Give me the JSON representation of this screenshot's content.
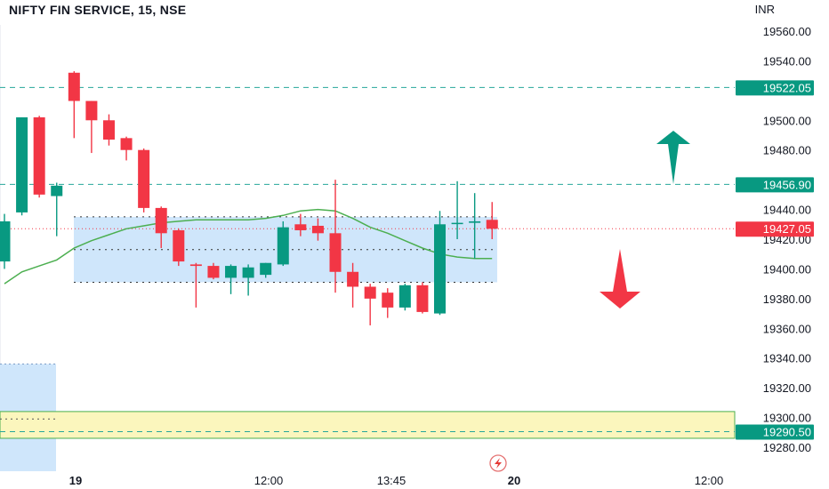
{
  "header": {
    "symbol": "NIFTY FIN SERVICE, 15, NSE",
    "currency": "INR"
  },
  "colors": {
    "up": "#089981",
    "down": "#f23645",
    "ma": "#4caf50",
    "blue_zone": "#cfe6fb",
    "yellow_zone": "#fbf6bd",
    "grid_text": "#131722",
    "dashed": "#26a69a"
  },
  "price_axis": {
    "ticks": [
      19560,
      19540,
      19520,
      19500,
      19480,
      19460,
      19440,
      19420,
      19400,
      19380,
      19360,
      19340,
      19320,
      19300,
      19280
    ],
    "tick_labels": [
      "19560.00",
      "19540.00",
      "19500.00",
      "19480.00",
      "19440.00",
      "19420.00",
      "19400.00",
      "19380.00",
      "19360.00",
      "19340.00",
      "19320.00",
      "19300.00",
      "19280.00"
    ],
    "label_values": [
      19560,
      19540,
      19500,
      19480,
      19440,
      19420,
      19400,
      19380,
      19360,
      19340,
      19320,
      19300,
      19280
    ],
    "range": [
      19270,
      19575
    ]
  },
  "time_axis": {
    "labels": [
      "19",
      "12:00",
      "13:45",
      "20",
      "12:00"
    ],
    "bold": [
      true,
      false,
      false,
      true,
      false
    ]
  },
  "levels": [
    {
      "price": 19522.05,
      "label": "19522.05",
      "bg": "#089981"
    },
    {
      "price": 19456.9,
      "label": "19456.90",
      "bg": "#089981"
    },
    {
      "price": 19427.05,
      "label": "19427.05",
      "bg": "#f23645"
    },
    {
      "price": 19290.5,
      "label": "19290.50",
      "bg": "#089981"
    }
  ],
  "chart_data": {
    "type": "candlestick",
    "title": "NIFTY FIN SERVICE, 15, NSE",
    "ylim": [
      19270,
      19575
    ],
    "candles": [
      {
        "o": 19405,
        "h": 19437,
        "c": 19432,
        "l": 19400
      },
      {
        "o": 19438,
        "h": 19502,
        "c": 19502,
        "l": 19436
      },
      {
        "o": 19502,
        "h": 19503,
        "c": 19450,
        "l": 19448
      },
      {
        "o": 19449,
        "h": 19458,
        "c": 19456,
        "l": 19422
      },
      {
        "o": 19532,
        "h": 19533,
        "c": 19513,
        "l": 19488
      },
      {
        "o": 19513,
        "h": 19513,
        "c": 19500,
        "l": 19478
      },
      {
        "o": 19500,
        "h": 19504,
        "c": 19487,
        "l": 19483
      },
      {
        "o": 19488,
        "h": 19489,
        "c": 19480,
        "l": 19473
      },
      {
        "o": 19480,
        "h": 19481,
        "c": 19441,
        "l": 19438
      },
      {
        "o": 19441,
        "h": 19442,
        "c": 19424,
        "l": 19414
      },
      {
        "o": 19426,
        "h": 19427,
        "c": 19405,
        "l": 19402
      },
      {
        "o": 19403,
        "h": 19404,
        "c": 19402,
        "l": 19374
      },
      {
        "o": 19402,
        "h": 19404,
        "c": 19394,
        "l": 19393
      },
      {
        "o": 19394,
        "h": 19403,
        "c": 19402,
        "l": 19383
      },
      {
        "o": 19394,
        "h": 19403,
        "c": 19401,
        "l": 19382
      },
      {
        "o": 19396,
        "h": 19404,
        "c": 19404,
        "l": 19394
      },
      {
        "o": 19403,
        "h": 19432,
        "c": 19428,
        "l": 19402
      },
      {
        "o": 19430,
        "h": 19437,
        "c": 19426,
        "l": 19422
      },
      {
        "o": 19429,
        "h": 19434,
        "c": 19424,
        "l": 19419
      },
      {
        "o": 19424,
        "h": 19460,
        "c": 19398,
        "l": 19384
      },
      {
        "o": 19398,
        "h": 19404,
        "c": 19388,
        "l": 19374
      },
      {
        "o": 19388,
        "h": 19390,
        "c": 19380,
        "l": 19362
      },
      {
        "o": 19384,
        "h": 19387,
        "c": 19374,
        "l": 19367
      },
      {
        "o": 19374,
        "h": 19390,
        "c": 19389,
        "l": 19372
      },
      {
        "o": 19389,
        "h": 19391,
        "c": 19371,
        "l": 19370
      },
      {
        "o": 19370,
        "h": 19439,
        "c": 19430,
        "l": 19369
      },
      {
        "o": 19431,
        "h": 19459,
        "c": 19431,
        "l": 19420
      },
      {
        "o": 19431,
        "h": 19451,
        "c": 19432,
        "l": 19407
      },
      {
        "o": 19433,
        "h": 19445,
        "c": 19427,
        "l": 19420
      }
    ],
    "ma": [
      19390,
      19398,
      19402,
      19406,
      19414,
      19419,
      19423,
      19427,
      19429,
      19431,
      19432,
      19433,
      19433,
      19433,
      19433,
      19434,
      19436,
      19439,
      19440,
      19439,
      19434,
      19428,
      19424,
      19419,
      19414,
      19410,
      19408,
      19407,
      19407
    ]
  }
}
